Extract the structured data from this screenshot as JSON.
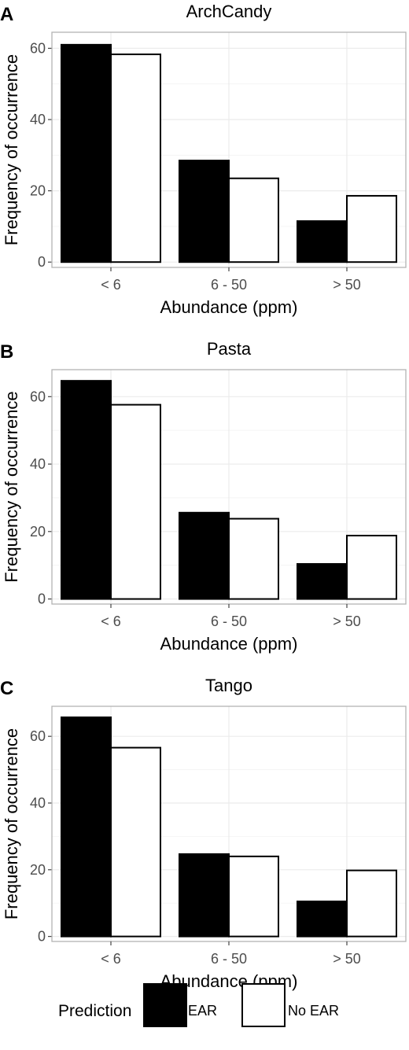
{
  "chart_data": [
    {
      "type": "bar",
      "panel": "A",
      "title": "ArchCandy",
      "xlabel": "Abundance (ppm)",
      "ylabel": "Frequency of occurrence",
      "categories": [
        "< 6",
        "6 - 50",
        "> 50"
      ],
      "series": [
        {
          "name": "EAR",
          "values": [
            61,
            28.5,
            11.5
          ]
        },
        {
          "name": "No EAR",
          "values": [
            58.3,
            23.5,
            18.6
          ]
        }
      ],
      "yticks": [
        0,
        20,
        40,
        60
      ],
      "ylim": [
        -1.5,
        64.5
      ]
    },
    {
      "type": "bar",
      "panel": "B",
      "title": "Pasta",
      "xlabel": "Abundance (ppm)",
      "ylabel": "Frequency of occurrence",
      "categories": [
        "< 6",
        "6 - 50",
        "> 50"
      ],
      "series": [
        {
          "name": "EAR",
          "values": [
            64.7,
            25.6,
            10.4
          ]
        },
        {
          "name": "No EAR",
          "values": [
            57.6,
            23.8,
            18.8
          ]
        }
      ],
      "yticks": [
        0,
        20,
        40,
        60
      ],
      "ylim": [
        -1.5,
        68
      ]
    },
    {
      "type": "bar",
      "panel": "C",
      "title": "Tango",
      "xlabel": "Abundance (ppm)",
      "ylabel": "Frequency of occurrence",
      "categories": [
        "< 6",
        "6 - 50",
        "> 50"
      ],
      "series": [
        {
          "name": "EAR",
          "values": [
            65.7,
            24.7,
            10.5
          ]
        },
        {
          "name": "No EAR",
          "values": [
            56.6,
            24.0,
            19.8
          ]
        }
      ],
      "yticks": [
        0,
        20,
        40,
        60
      ],
      "ylim": [
        -1.5,
        69
      ]
    }
  ],
  "legend": {
    "title": "Prediction",
    "items": [
      {
        "label": "EAR",
        "fill": "#000000"
      },
      {
        "label": "No EAR",
        "fill": "#ffffff"
      }
    ],
    "position": "bottom"
  },
  "colors": {
    "ear": "#000000",
    "no_ear": "#ffffff",
    "grid": "#ebebeb",
    "border": "#b3b3b3"
  }
}
